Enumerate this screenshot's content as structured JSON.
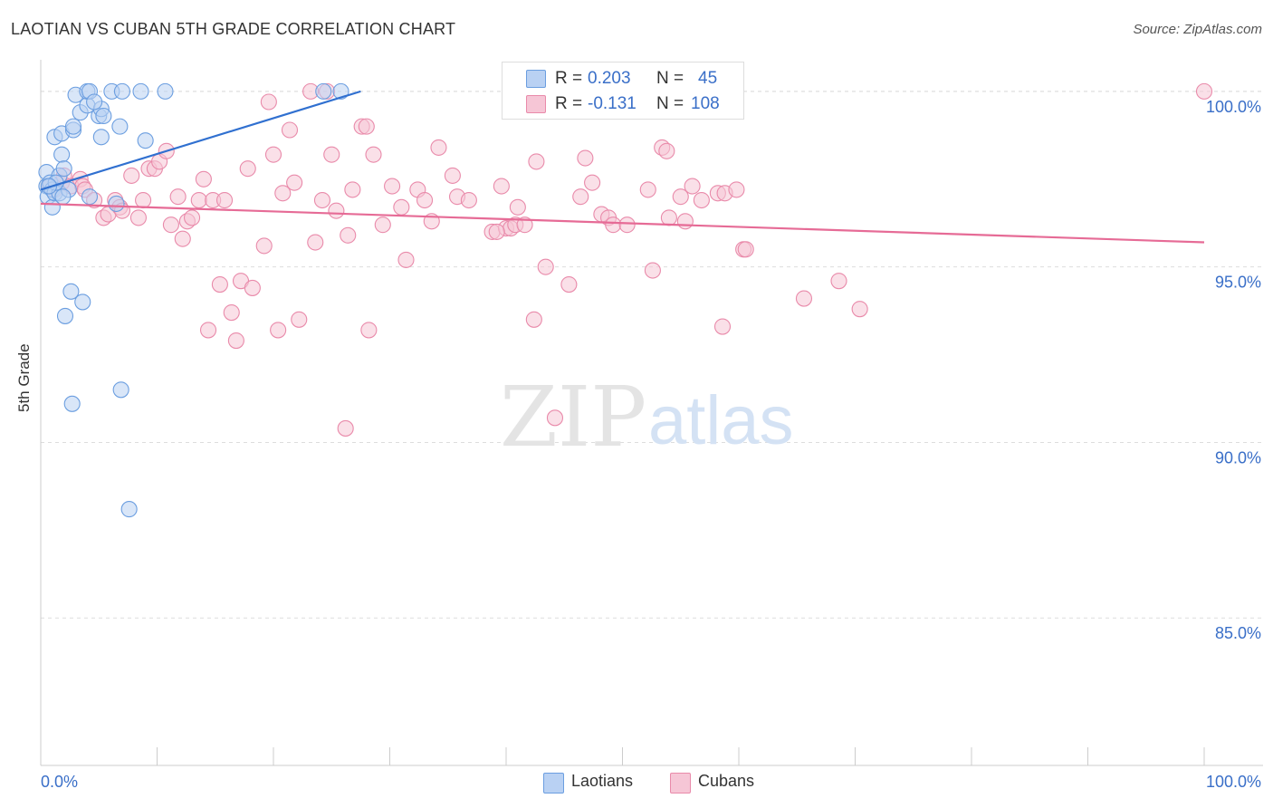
{
  "header": {
    "title": "LAOTIAN VS CUBAN 5TH GRADE CORRELATION CHART",
    "source": "Source: ZipAtlas.com"
  },
  "watermark": {
    "zip": "ZIP",
    "atlas": "atlas"
  },
  "legend": {
    "rows": [
      {
        "r_label": "R =",
        "r_value": "0.203",
        "n_label": "N =",
        "n_value": "45"
      },
      {
        "r_label": "R =",
        "r_value": "-0.131",
        "n_label": "N =",
        "n_value": "108"
      }
    ]
  },
  "bottom_legend": [
    "Laotians",
    "Cubans"
  ],
  "colors": {
    "blue_fill": "#b9d1f3",
    "blue_stroke": "#6b9ee0",
    "blue_line": "#3070d0",
    "pink_fill": "#f6c6d6",
    "pink_stroke": "#e98aaa",
    "pink_line": "#e66b96",
    "tick_label": "#3a6fc8",
    "grid": "#dddddd"
  },
  "chart_data": {
    "type": "scatter",
    "title": "LAOTIAN VS CUBAN 5TH GRADE CORRELATION CHART",
    "xlabel": "",
    "ylabel": "5th Grade",
    "xlim": [
      0,
      100
    ],
    "ylim": [
      80.8,
      100.9
    ],
    "y_ticks": [
      85,
      90,
      95,
      100
    ],
    "y_tick_labels": [
      "85.0%",
      "90.0%",
      "95.0%",
      "100.0%"
    ],
    "x_tick_labels": [
      "0.0%",
      "100.0%"
    ],
    "grid": true,
    "series": [
      {
        "name": "Laotians",
        "R": 0.203,
        "N": 45,
        "trend": {
          "x": [
            0,
            27.5
          ],
          "y": [
            97.2,
            100.0
          ]
        },
        "points": [
          [
            0.5,
            97.7
          ],
          [
            0.5,
            97.3
          ],
          [
            0.6,
            97.0
          ],
          [
            0.8,
            97.4
          ],
          [
            1.0,
            96.7
          ],
          [
            1.0,
            97.2
          ],
          [
            1.2,
            97.1
          ],
          [
            1.2,
            98.7
          ],
          [
            1.6,
            97.6
          ],
          [
            1.6,
            97.1
          ],
          [
            1.8,
            98.8
          ],
          [
            1.8,
            98.2
          ],
          [
            2.0,
            97.8
          ],
          [
            2.4,
            97.2
          ],
          [
            2.6,
            94.3
          ],
          [
            2.8,
            98.9
          ],
          [
            2.8,
            99.0
          ],
          [
            3.0,
            99.9
          ],
          [
            3.4,
            99.4
          ],
          [
            3.6,
            94.0
          ],
          [
            4.0,
            99.6
          ],
          [
            4.2,
            97.0
          ],
          [
            4.0,
            100.0
          ],
          [
            4.2,
            100.0
          ],
          [
            5.0,
            99.3
          ],
          [
            5.2,
            98.7
          ],
          [
            5.2,
            99.5
          ],
          [
            5.4,
            99.3
          ],
          [
            6.1,
            100.0
          ],
          [
            6.5,
            96.8
          ],
          [
            6.8,
            99.0
          ],
          [
            6.9,
            91.5
          ],
          [
            7.0,
            100.0
          ],
          [
            7.6,
            88.1
          ],
          [
            8.6,
            100.0
          ],
          [
            9.0,
            98.6
          ],
          [
            10.7,
            100.0
          ],
          [
            25.8,
            100.0
          ],
          [
            2.1,
            93.6
          ],
          [
            2.7,
            91.1
          ],
          [
            1.3,
            97.4
          ],
          [
            0.7,
            97.3
          ],
          [
            1.9,
            97.0
          ],
          [
            4.6,
            99.7
          ],
          [
            24.3,
            100.0
          ]
        ]
      },
      {
        "name": "Cubans",
        "R": -0.131,
        "N": 108,
        "trend": {
          "x": [
            0,
            100
          ],
          "y": [
            96.8,
            95.7
          ]
        },
        "points": [
          [
            0.8,
            97.3
          ],
          [
            1.2,
            97.2
          ],
          [
            1.8,
            97.4
          ],
          [
            2.0,
            97.6
          ],
          [
            2.6,
            97.3
          ],
          [
            3.4,
            97.5
          ],
          [
            3.6,
            97.3
          ],
          [
            3.8,
            97.2
          ],
          [
            4.6,
            96.9
          ],
          [
            5.4,
            96.4
          ],
          [
            5.8,
            96.5
          ],
          [
            6.4,
            96.9
          ],
          [
            6.8,
            96.7
          ],
          [
            7.0,
            96.6
          ],
          [
            7.8,
            97.6
          ],
          [
            8.4,
            96.4
          ],
          [
            8.8,
            96.9
          ],
          [
            9.3,
            97.8
          ],
          [
            9.8,
            97.8
          ],
          [
            10.2,
            98.0
          ],
          [
            10.8,
            98.3
          ],
          [
            11.2,
            96.2
          ],
          [
            11.8,
            97.0
          ],
          [
            12.2,
            95.8
          ],
          [
            12.6,
            96.3
          ],
          [
            13.0,
            96.4
          ],
          [
            13.6,
            96.9
          ],
          [
            14.0,
            97.5
          ],
          [
            14.4,
            93.2
          ],
          [
            14.8,
            96.9
          ],
          [
            15.4,
            94.5
          ],
          [
            15.8,
            96.9
          ],
          [
            16.4,
            93.7
          ],
          [
            16.8,
            92.9
          ],
          [
            17.2,
            94.6
          ],
          [
            17.8,
            97.8
          ],
          [
            18.2,
            94.4
          ],
          [
            19.2,
            95.6
          ],
          [
            19.6,
            99.7
          ],
          [
            20.0,
            98.2
          ],
          [
            20.4,
            93.2
          ],
          [
            20.8,
            97.1
          ],
          [
            21.4,
            98.9
          ],
          [
            21.8,
            97.4
          ],
          [
            22.2,
            93.5
          ],
          [
            23.2,
            100.0
          ],
          [
            23.6,
            95.7
          ],
          [
            24.2,
            96.9
          ],
          [
            24.6,
            100.0
          ],
          [
            25.0,
            98.2
          ],
          [
            25.4,
            96.6
          ],
          [
            26.4,
            95.9
          ],
          [
            26.8,
            97.2
          ],
          [
            27.6,
            99.0
          ],
          [
            28.0,
            99.0
          ],
          [
            28.2,
            93.2
          ],
          [
            28.6,
            98.2
          ],
          [
            29.4,
            96.2
          ],
          [
            30.2,
            97.3
          ],
          [
            31.0,
            96.7
          ],
          [
            31.4,
            95.2
          ],
          [
            32.4,
            97.2
          ],
          [
            33.0,
            96.9
          ],
          [
            33.6,
            96.3
          ],
          [
            34.2,
            98.4
          ],
          [
            35.4,
            97.6
          ],
          [
            35.8,
            97.0
          ],
          [
            36.8,
            96.9
          ],
          [
            38.8,
            96.0
          ],
          [
            39.6,
            97.3
          ],
          [
            40.0,
            96.1
          ],
          [
            40.4,
            96.1
          ],
          [
            40.8,
            96.2
          ],
          [
            41.0,
            96.7
          ],
          [
            41.6,
            96.2
          ],
          [
            42.4,
            93.5
          ],
          [
            42.6,
            98.0
          ],
          [
            43.4,
            95.0
          ],
          [
            45.4,
            94.5
          ],
          [
            46.4,
            97.0
          ],
          [
            46.8,
            98.1
          ],
          [
            47.4,
            97.4
          ],
          [
            48.2,
            96.5
          ],
          [
            48.8,
            96.4
          ],
          [
            49.2,
            96.2
          ],
          [
            50.4,
            96.2
          ],
          [
            52.2,
            97.2
          ],
          [
            52.6,
            94.9
          ],
          [
            53.4,
            98.4
          ],
          [
            53.8,
            98.3
          ],
          [
            54.0,
            96.4
          ],
          [
            55.0,
            97.0
          ],
          [
            55.4,
            96.3
          ],
          [
            56.0,
            97.3
          ],
          [
            56.8,
            96.9
          ],
          [
            58.2,
            97.1
          ],
          [
            58.8,
            97.1
          ],
          [
            59.8,
            97.2
          ],
          [
            60.4,
            95.5
          ],
          [
            60.6,
            95.5
          ],
          [
            65.6,
            94.1
          ],
          [
            68.6,
            94.6
          ],
          [
            70.4,
            93.8
          ],
          [
            100.0,
            100.0
          ],
          [
            39.2,
            96.0
          ],
          [
            58.6,
            93.3
          ],
          [
            26.2,
            90.4
          ],
          [
            44.2,
            90.7
          ]
        ]
      }
    ]
  }
}
